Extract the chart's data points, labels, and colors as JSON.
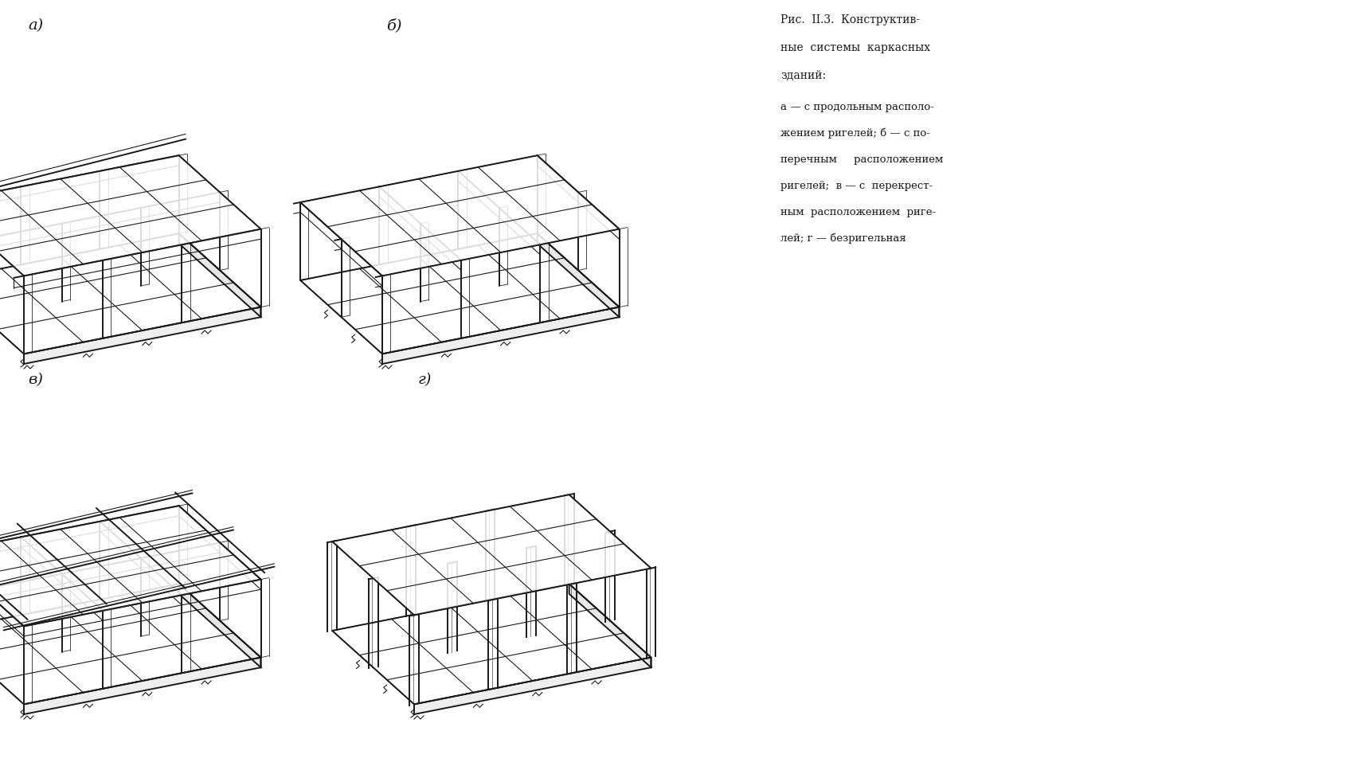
{
  "background_color": "#ffffff",
  "line_color": "#1a1a1a",
  "title_text": "Рис.  II.3.  Конструктив-\nные системы каркасных\nзданий:",
  "caption_text": "а — с продольным располо-\nжением ригелей; б — с по-\nперечным  расположением\nригелей; в — с перекрест-\nным расположением риге-\nлей; г — безригельная",
  "label_a": "а)",
  "label_b": "б)",
  "label_v": "в)",
  "label_g": "г)"
}
